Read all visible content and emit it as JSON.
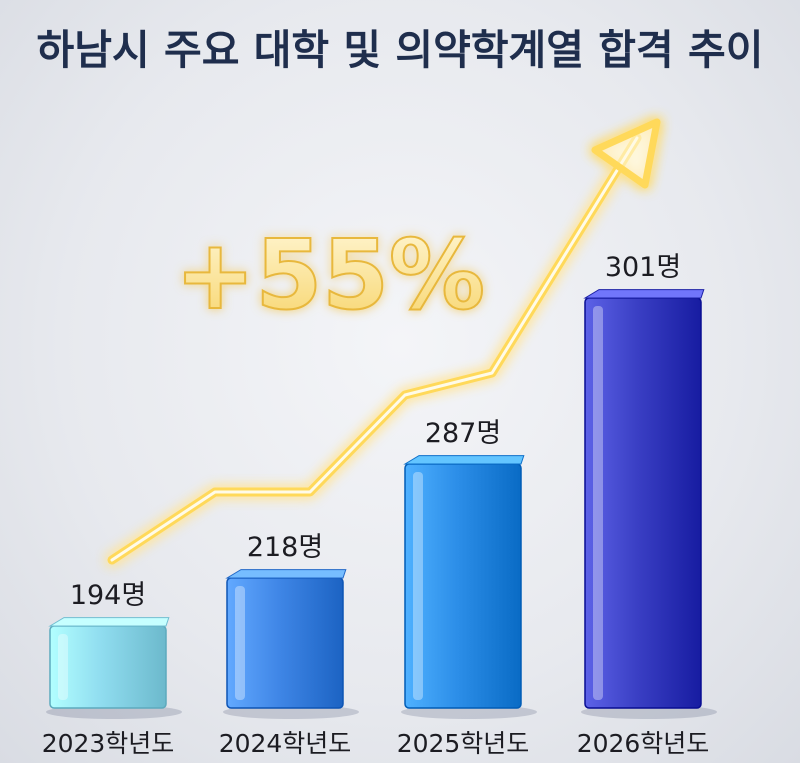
{
  "chart_data": {
    "type": "bar",
    "title": "하남시 주요 대학 및 의약학계열 합격 추이",
    "categories": [
      "2023학년도",
      "2024학년도",
      "2025학년도",
      "2026학년도"
    ],
    "values": [
      194,
      218,
      287,
      301
    ],
    "value_labels": [
      "194명",
      "218명",
      "287명",
      "301명"
    ],
    "annotation": "+55%",
    "trend_arrow": true,
    "bar_colors": [
      "#8fdcef",
      "#3f86e6",
      "#2c8ee8",
      "#3a3fc4"
    ],
    "arrow_color": "#ffd95a",
    "grid": false,
    "legend": "none"
  }
}
